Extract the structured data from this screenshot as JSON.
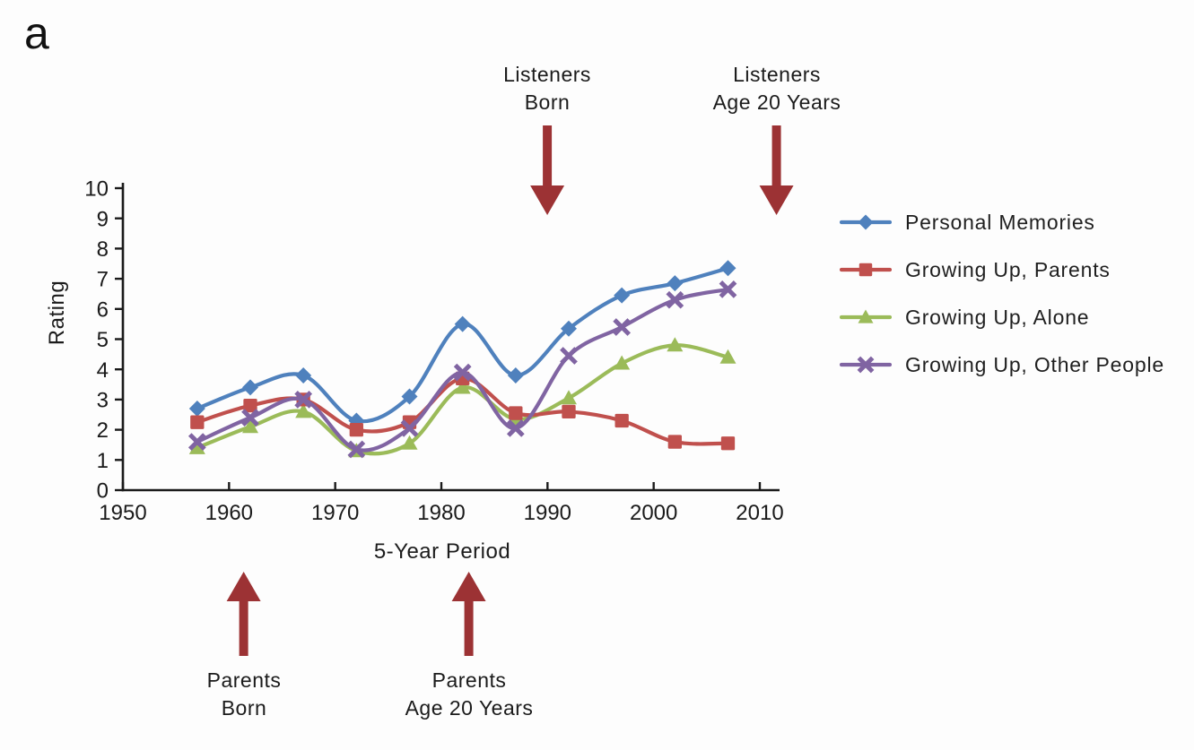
{
  "panel_label": "a",
  "chart_data": {
    "type": "line",
    "title": "",
    "xlabel": "5-Year Period",
    "ylabel": "Rating",
    "xlim": [
      1950,
      2010
    ],
    "ylim": [
      0,
      10
    ],
    "x_ticks": [
      1950,
      1960,
      1970,
      1980,
      1990,
      2000,
      2010
    ],
    "y_ticks": [
      0,
      1,
      2,
      3,
      4,
      5,
      6,
      7,
      8,
      9,
      10
    ],
    "grid": false,
    "legend_position": "right",
    "x": [
      1957,
      1962,
      1967,
      1972,
      1977,
      1982,
      1987,
      1992,
      1997,
      2002,
      2007
    ],
    "series": [
      {
        "name": "Personal Memories",
        "marker": "diamond",
        "color": "#4f81bd",
        "values": [
          2.7,
          3.4,
          3.8,
          2.3,
          3.1,
          5.5,
          3.8,
          5.35,
          6.45,
          6.85,
          7.35
        ]
      },
      {
        "name": "Growing Up, Parents",
        "marker": "square",
        "color": "#c0504d",
        "values": [
          2.25,
          2.8,
          3.0,
          2.0,
          2.25,
          3.7,
          2.55,
          2.6,
          2.3,
          1.6,
          1.55
        ]
      },
      {
        "name": "Growing Up, Alone",
        "marker": "triangle",
        "color": "#9bbb59",
        "values": [
          1.4,
          2.1,
          2.6,
          1.3,
          1.55,
          3.4,
          2.35,
          3.05,
          4.2,
          4.8,
          4.4
        ]
      },
      {
        "name": "Growing Up, Other People",
        "marker": "x",
        "color": "#8064a2",
        "values": [
          1.6,
          2.4,
          3.0,
          1.35,
          2.05,
          3.9,
          2.05,
          4.45,
          5.4,
          6.3,
          6.65
        ]
      }
    ]
  },
  "annotations": {
    "arrow_color": "#9c3234",
    "listeners_born": {
      "line1": "Listeners",
      "line2": "Born",
      "direction": "down",
      "year": 1990
    },
    "listeners_age20": {
      "line1": "Listeners",
      "line2": "Age 20 Years",
      "direction": "down",
      "year": 2011.5
    },
    "parents_born": {
      "line1": "Parents",
      "line2": "Born",
      "direction": "up",
      "year": 1961.5
    },
    "parents_age20": {
      "line1": "Parents",
      "line2": "Age 20 Years",
      "direction": "up",
      "year": 1982.5
    }
  }
}
